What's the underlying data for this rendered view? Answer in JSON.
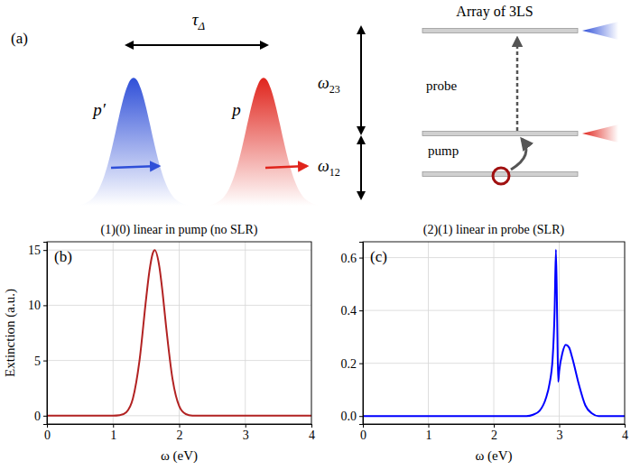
{
  "diagram": {
    "panel": "(a)",
    "delay": {
      "base": "τ",
      "sub": "Δ"
    },
    "pulses": [
      "p′",
      "p"
    ],
    "system_title": "Array of 3LS",
    "transitions": [
      {
        "base": "ω",
        "sub": "23"
      },
      {
        "base": "ω",
        "sub": "12"
      }
    ],
    "arrows": [
      "probe",
      "pump"
    ]
  },
  "chart_data": [
    {
      "type": "line",
      "title": "(1)(0) linear in pump (no SLR)",
      "annotations": [
        "(b)"
      ],
      "x_label": "ω (eV)",
      "y_label": "Extinction (a.u.)",
      "x": [
        0,
        1.0,
        1.1,
        1.2,
        1.3,
        1.4,
        1.5,
        1.55,
        1.6,
        1.63,
        1.7,
        1.75,
        1.8,
        1.9,
        2.0,
        2.1,
        2.2,
        2.3,
        2.5,
        3.0,
        4.0
      ],
      "series": [
        {
          "color": "#b22222",
          "values": [
            0,
            0,
            0.04,
            0.32,
            1.55,
            5.0,
            10.6,
            13.1,
            14.7,
            15.0,
            13.5,
            11.1,
            8.2,
            3.3,
            0.87,
            0.15,
            0.01,
            0,
            0,
            0,
            0
          ]
        }
      ],
      "xlim": [
        0,
        4
      ],
      "xticks": [
        0,
        1,
        2,
        3,
        4
      ],
      "ylim": [
        -0.75,
        15.75
      ],
      "yticks": [
        0,
        5,
        10,
        15
      ],
      "grid": true
    },
    {
      "type": "line",
      "title": "(2)(1) linear in probe (SLR)",
      "annotations": [
        "(c)"
      ],
      "x_label": "ω (eV)",
      "x": [
        0,
        2.5,
        2.6,
        2.7,
        2.8,
        2.85,
        2.9,
        2.93,
        2.95,
        2.97,
        2.985,
        3.0,
        3.05,
        3.1,
        3.15,
        3.2,
        3.3,
        3.4,
        3.5,
        3.6,
        4.0
      ],
      "series": [
        {
          "color": "#0000ff",
          "values": [
            0,
            0,
            0.005,
            0.02,
            0.07,
            0.12,
            0.22,
            0.4,
            0.63,
            0.35,
            0.13,
            0.17,
            0.24,
            0.27,
            0.26,
            0.22,
            0.12,
            0.04,
            0.01,
            0,
            0
          ]
        }
      ],
      "xlim": [
        0,
        4
      ],
      "xticks": [
        0,
        1,
        2,
        3,
        4
      ],
      "ylim": [
        -0.03,
        0.66
      ],
      "yticks": [
        {
          "value": 0,
          "label": "0.0"
        },
        {
          "value": 0.2,
          "label": "0.2"
        },
        {
          "value": 0.4,
          "label": "0.4"
        },
        {
          "value": 0.6,
          "label": "0.6"
        }
      ],
      "grid": true
    }
  ]
}
